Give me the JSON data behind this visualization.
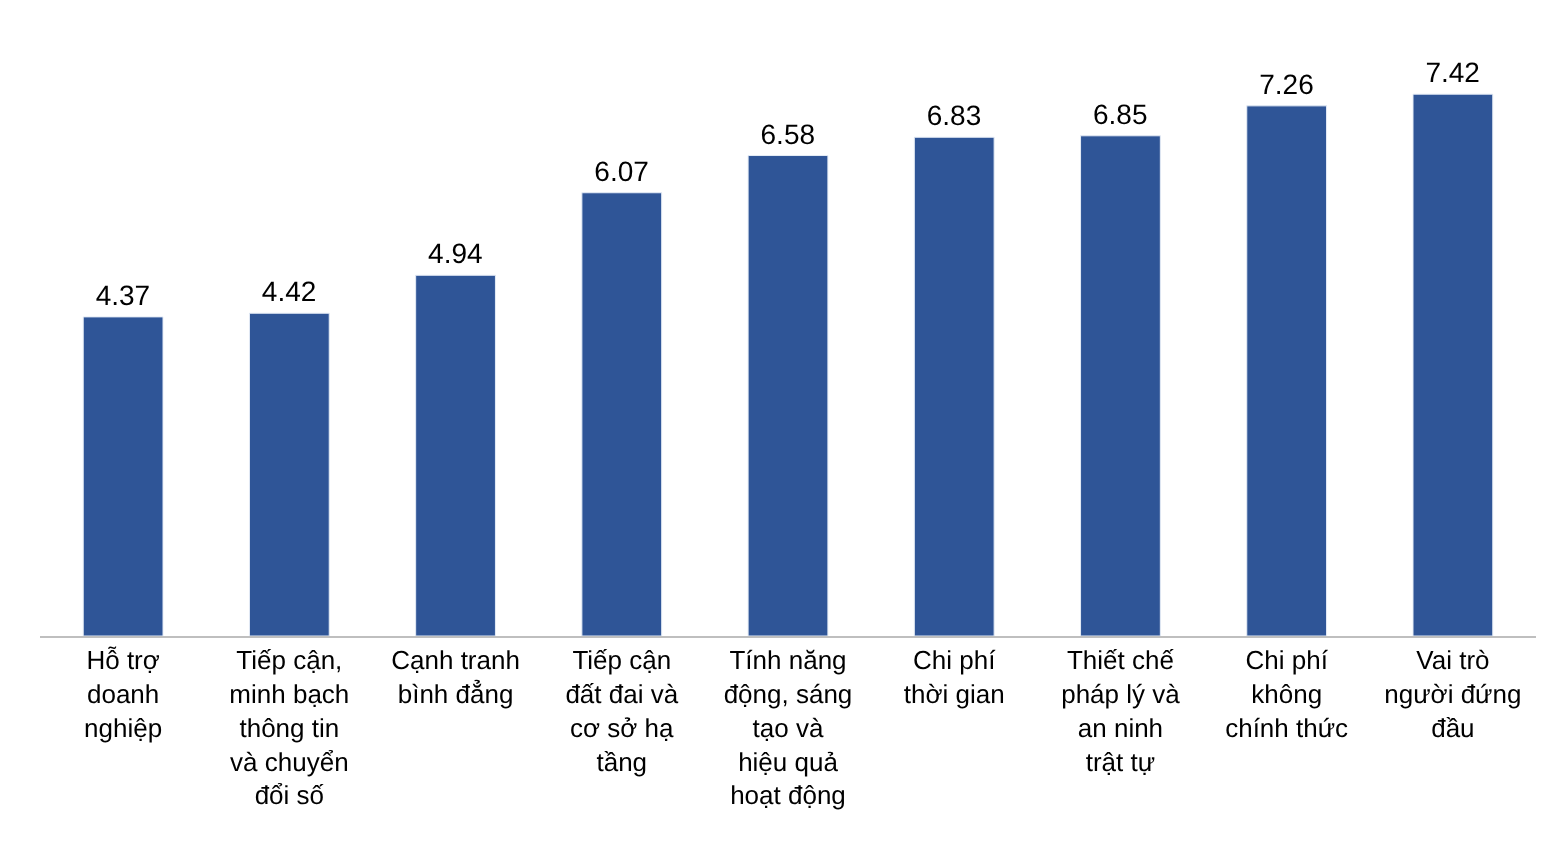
{
  "chart_data": {
    "type": "bar",
    "categories": [
      "Hỗ trợ doanh nghiệp",
      "Tiếp cận, minh bạch thông tin và chuyển đổi số",
      "Cạnh tranh bình đẳng",
      "Tiếp cận đất đai và cơ sở hạ tầng",
      "Tính năng động, sáng tạo và hiệu quả hoạt động",
      "Chi phí thời gian",
      "Thiết chế pháp lý và an ninh trật tự",
      "Chi phí không chính thức",
      "Vai trò người đứng đầu"
    ],
    "values": [
      4.37,
      4.42,
      4.94,
      6.07,
      6.58,
      6.83,
      6.85,
      7.26,
      7.42
    ],
    "color": "#2f5597",
    "data_labels": true,
    "legend": false
  }
}
